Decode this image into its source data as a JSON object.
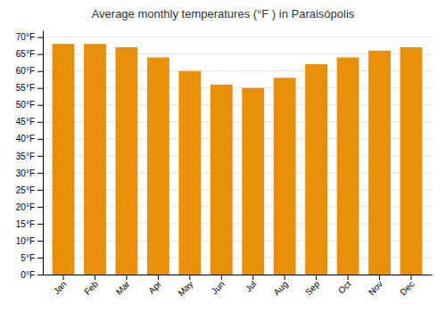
{
  "chart_data": {
    "type": "bar",
    "title": "Average monthly temperatures (°F ) in Paraisópolis",
    "categories": [
      "Jan",
      "Feb",
      "Mar",
      "Apr",
      "May",
      "Jun",
      "Jul",
      "Aug",
      "Sep",
      "Oct",
      "Nov",
      "Dec"
    ],
    "values": [
      68,
      68,
      67,
      64,
      60,
      56,
      55,
      58,
      62,
      64,
      66,
      67
    ],
    "color": "#E8900A",
    "ylim": [
      0,
      72
    ],
    "yticks": [
      {
        "value": 0,
        "label": "0°F"
      },
      {
        "value": 5,
        "label": "5°F"
      },
      {
        "value": 10,
        "label": "10°F"
      },
      {
        "value": 15,
        "label": "15°F"
      },
      {
        "value": 20,
        "label": "20°F"
      },
      {
        "value": 25,
        "label": "25°F"
      },
      {
        "value": 30,
        "label": "30°F"
      },
      {
        "value": 35,
        "label": "35°F"
      },
      {
        "value": 40,
        "label": "40°F"
      },
      {
        "value": 45,
        "label": "45°F"
      },
      {
        "value": 50,
        "label": "50°F"
      },
      {
        "value": 55,
        "label": "55°F"
      },
      {
        "value": 60,
        "label": "60°F"
      },
      {
        "value": 65,
        "label": "65°F"
      },
      {
        "value": 70,
        "label": "70°F"
      }
    ],
    "grid": true
  }
}
